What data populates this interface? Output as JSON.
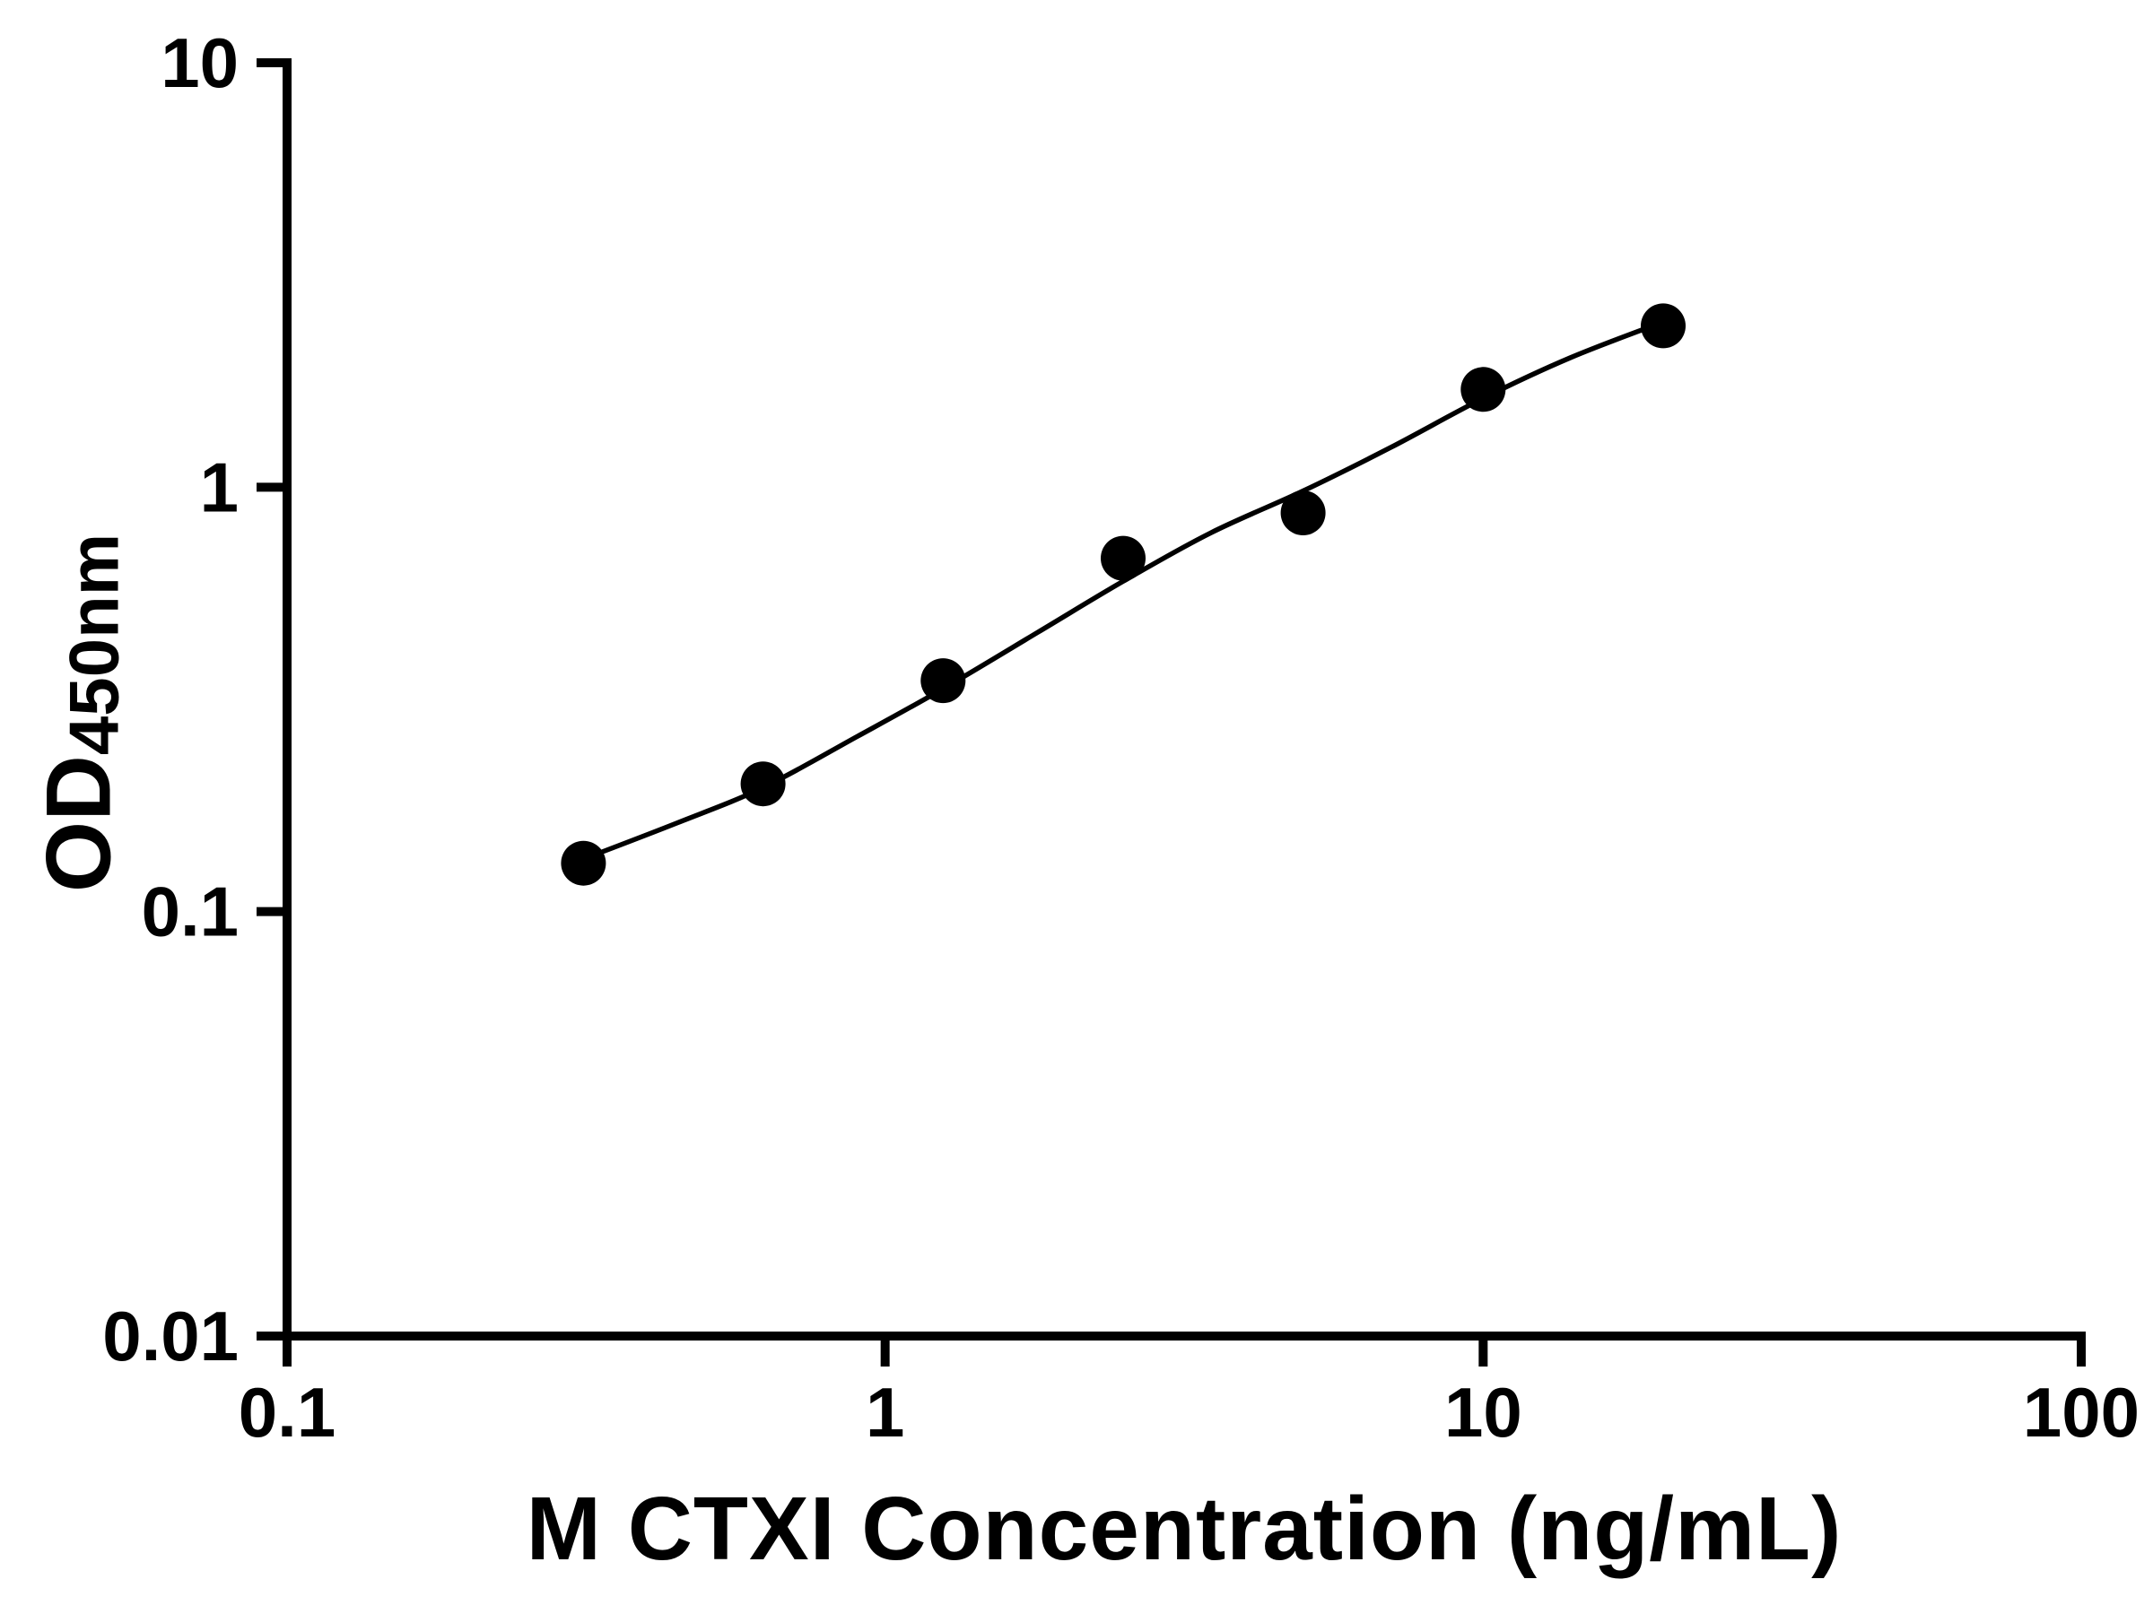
{
  "figure": {
    "background_color": "#ffffff",
    "axis_color": "#000000",
    "marker_color": "#000000",
    "curve_color": "#000000"
  },
  "chart_data": {
    "type": "scatter",
    "title": "",
    "xlabel": "M CTXI Concentration (ng/mL)",
    "ylabel_base": "OD",
    "ylabel_subscript": "450nm",
    "x_scale": "log",
    "y_scale": "log",
    "xlim": [
      0.1,
      100
    ],
    "ylim": [
      0.01,
      10
    ],
    "x_ticks": [
      0.1,
      1,
      10,
      100
    ],
    "x_tick_labels": [
      "0.1",
      "1",
      "10",
      "100"
    ],
    "y_ticks": [
      0.01,
      0.1,
      1,
      10
    ],
    "y_tick_labels": [
      "0.01",
      "0.1",
      "1",
      "10"
    ],
    "grid": false,
    "legend": null,
    "series": [
      {
        "name": "standard-curve-points",
        "marker": "filled-circle",
        "x": [
          0.313,
          0.625,
          1.25,
          2.5,
          5,
          10,
          20
        ],
        "y": [
          0.13,
          0.2,
          0.35,
          0.68,
          0.87,
          1.7,
          2.4
        ]
      }
    ],
    "fit_curve": {
      "name": "4pl-fit",
      "x": [
        0.313,
        0.45,
        0.625,
        0.9,
        1.25,
        1.8,
        2.5,
        3.5,
        5,
        7,
        10,
        14,
        20
      ],
      "y": [
        0.133,
        0.162,
        0.196,
        0.259,
        0.335,
        0.455,
        0.6,
        0.78,
        0.98,
        1.24,
        1.62,
        2.02,
        2.45
      ]
    }
  }
}
